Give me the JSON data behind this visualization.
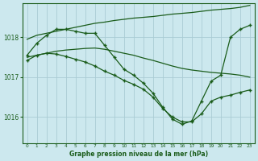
{
  "title": "Graphe pression niveau de la mer (hPa)",
  "bg_color": "#cce8ee",
  "grid_color": "#aaccd4",
  "line_color": "#1a5c1a",
  "marker_color": "#1a5c1a",
  "x_labels": [
    "0",
    "1",
    "2",
    "3",
    "4",
    "5",
    "6",
    "7",
    "8",
    "9",
    "10",
    "11",
    "12",
    "13",
    "14",
    "15",
    "16",
    "17",
    "18",
    "19",
    "20",
    "21",
    "22",
    "23"
  ],
  "ylim": [
    1015.35,
    1018.85
  ],
  "yticks": [
    1016,
    1017,
    1018
  ],
  "figsize": [
    3.2,
    2.0
  ],
  "dpi": 100,
  "series_no_marker": [
    [
      1017.95,
      1018.05,
      1018.1,
      1018.15,
      1018.2,
      1018.25,
      1018.3,
      1018.35,
      1018.38,
      1018.42,
      1018.45,
      1018.48,
      1018.5,
      1018.52,
      1018.55,
      1018.58,
      1018.6,
      1018.62,
      1018.65,
      1018.68,
      1018.7,
      1018.72,
      1018.75,
      1018.8
    ],
    [
      1017.5,
      1017.55,
      1017.6,
      1017.65,
      1017.68,
      1017.7,
      1017.72,
      1017.73,
      1017.7,
      1017.65,
      1017.6,
      1017.55,
      1017.48,
      1017.42,
      1017.35,
      1017.28,
      1017.22,
      1017.18,
      1017.15,
      1017.12,
      1017.1,
      1017.08,
      1017.05,
      1017.0
    ]
  ],
  "series_with_marker": [
    [
      1017.55,
      1017.85,
      1018.05,
      1018.2,
      1018.2,
      1018.15,
      1018.1,
      1018.1,
      1017.8,
      1017.5,
      1017.2,
      1017.05,
      1016.85,
      1016.6,
      1016.25,
      1015.95,
      1015.82,
      1015.9,
      1016.4,
      1016.9,
      1017.05,
      1018.0,
      1018.2,
      1018.3
    ],
    [
      1017.42,
      1017.55,
      1017.6,
      1017.58,
      1017.52,
      1017.45,
      1017.38,
      1017.28,
      1017.15,
      1017.05,
      1016.92,
      1016.82,
      1016.7,
      1016.5,
      1016.22,
      1016.0,
      1015.88,
      1015.88,
      1016.08,
      1016.4,
      1016.5,
      1016.55,
      1016.62,
      1016.68
    ]
  ]
}
